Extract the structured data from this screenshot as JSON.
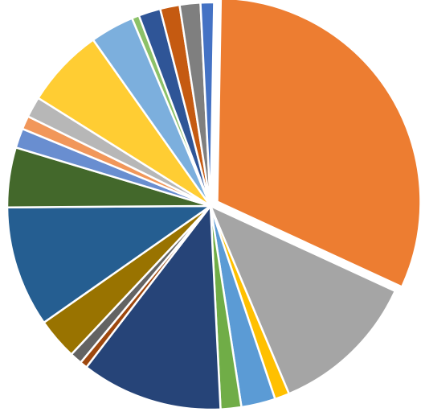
{
  "chart_data": {
    "type": "pie",
    "title": "",
    "start_angle_deg": 1,
    "direction": "clockwise",
    "exploded_index": 0,
    "slices": [
      {
        "value": 32.6,
        "color": "#ED7D31"
      },
      {
        "value": 12.2,
        "color": "#A5A5A5"
      },
      {
        "value": 1.2,
        "color": "#FFC000"
      },
      {
        "value": 2.8,
        "color": "#5B9BD5"
      },
      {
        "value": 1.7,
        "color": "#70AD47"
      },
      {
        "value": 11.6,
        "color": "#264478"
      },
      {
        "value": 0.6,
        "color": "#9E480E"
      },
      {
        "value": 1.0,
        "color": "#636363"
      },
      {
        "value": 3.4,
        "color": "#997300"
      },
      {
        "value": 9.9,
        "color": "#255E91"
      },
      {
        "value": 4.9,
        "color": "#43682B"
      },
      {
        "value": 1.6,
        "color": "#698ED0"
      },
      {
        "value": 1.1,
        "color": "#F1975A"
      },
      {
        "value": 1.7,
        "color": "#B7B7B7"
      },
      {
        "value": 6.5,
        "color": "#FFCD33"
      },
      {
        "value": 3.6,
        "color": "#7CAFDD"
      },
      {
        "value": 0.6,
        "color": "#8CC168"
      },
      {
        "value": 1.8,
        "color": "#2F5597"
      },
      {
        "value": 1.6,
        "color": "#C55A11"
      },
      {
        "value": 1.7,
        "color": "#7F7F7F"
      },
      {
        "value": 1.1,
        "color": "#4472C4"
      }
    ]
  }
}
